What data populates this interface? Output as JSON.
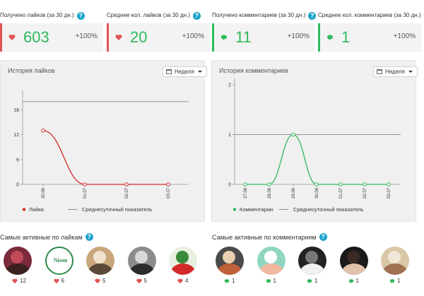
{
  "stats": [
    {
      "title": "Получено лайков (за 30 дн.)",
      "value": "603",
      "pct": "+100%",
      "icon": "heart-icon",
      "color": "#e05353"
    },
    {
      "title": "Среднее кол. лайков (за 30 дн.)",
      "value": "20",
      "pct": "+100%",
      "icon": "heart-icon",
      "color": "#e05353"
    },
    {
      "title": "Получено комментариев (за 30 дн.)",
      "value": "11",
      "pct": "+100%",
      "icon": "comment-icon",
      "color": "#2fb95c"
    },
    {
      "title": "Среднее кол. комментариев (за 30 дн.)",
      "value": "1",
      "pct": "+100%",
      "icon": "comment-icon",
      "color": "#2fb95c"
    }
  ],
  "help_glyph": "?",
  "likes_panel": {
    "title": "История лайков",
    "period": "Неделя"
  },
  "comments_panel": {
    "title": "История комментариев",
    "period": "Неделя"
  },
  "chart_data": [
    {
      "type": "line",
      "x": [
        "30.06",
        "01.07",
        "02.07",
        "03.07"
      ],
      "series": [
        {
          "name": "Лайки",
          "values": [
            13,
            0,
            0,
            0
          ],
          "color": "#d42a2a"
        },
        {
          "name": "Среднесуточный показатель",
          "values": [
            20,
            20,
            20,
            20
          ],
          "color": "#777777"
        }
      ],
      "yticks": [
        0,
        6,
        12,
        18
      ],
      "ylim": [
        0,
        21
      ],
      "grid": true,
      "legend": "bottom-left"
    },
    {
      "type": "line",
      "x": [
        "27.06",
        "28.06",
        "29.06",
        "30.06",
        "01.07",
        "02.07",
        "03.07"
      ],
      "series": [
        {
          "name": "Комментарии",
          "values": [
            0,
            0,
            1,
            0,
            0,
            0,
            0
          ],
          "color": "#2fb95c"
        },
        {
          "name": "Среднесуточный показатель",
          "values": [
            1,
            1,
            1,
            1,
            1,
            1,
            1
          ],
          "color": "#777777"
        }
      ],
      "yticks": [
        0,
        1,
        2
      ],
      "ylim": [
        0,
        2
      ],
      "grid": true,
      "legend": "bottom-left"
    }
  ],
  "active_likes": {
    "title": "Самые активные по лайкам",
    "users": [
      {
        "count": "12",
        "colors": [
          "#7a2a3a",
          "#3b2020",
          "#c04a5a"
        ]
      },
      {
        "count": "6",
        "colors": [
          "#ffffff",
          "#2e8b4a",
          "#d94a7a"
        ]
      },
      {
        "count": "5",
        "colors": [
          "#c9a77a",
          "#5b4a3a",
          "#f1e2d0"
        ]
      },
      {
        "count": "5",
        "colors": [
          "#8c8c8c",
          "#2c2c2c",
          "#d8d8d8"
        ]
      },
      {
        "count": "4",
        "colors": [
          "#e8f0e0",
          "#d22a2a",
          "#3a8a3a"
        ]
      }
    ],
    "logo_text": "Nison"
  },
  "active_comments": {
    "title": "Самые активные по комментариям",
    "users": [
      {
        "count": "1",
        "colors": [
          "#4a4a4a",
          "#c0603a",
          "#e8d0b0"
        ]
      },
      {
        "count": "1",
        "colors": [
          "#8fd6c0",
          "#f2b8a0",
          "#ffffff"
        ]
      },
      {
        "count": "1",
        "colors": [
          "#222222",
          "#f0f0f0",
          "#777777"
        ]
      },
      {
        "count": "1",
        "colors": [
          "#1a1a1a",
          "#e0c0a8",
          "#3a2a22"
        ]
      },
      {
        "count": "1",
        "colors": [
          "#d8c8a8",
          "#a07050",
          "#f2e6d8"
        ]
      }
    ]
  }
}
